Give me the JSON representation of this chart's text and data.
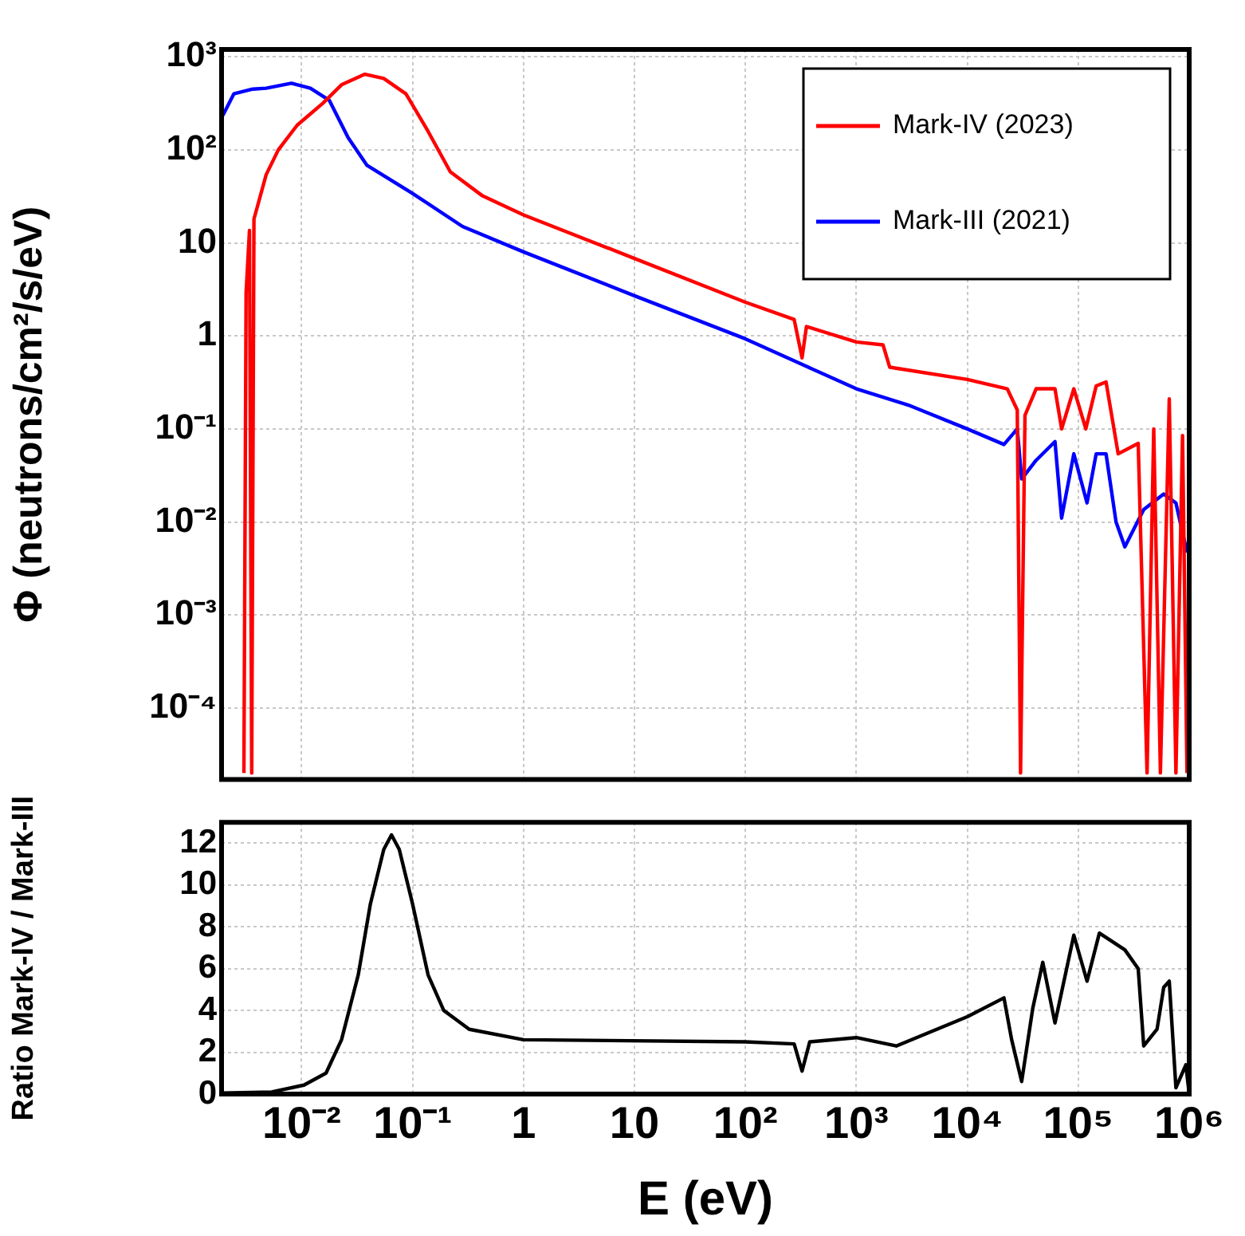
{
  "chart_data": [
    {
      "type": "line",
      "ylabel": "Φ (neutrons/cm²/s/eV)",
      "log": "xy",
      "grid": true,
      "legend": "top right",
      "tick_labels": "y",
      "marker": "none",
      "line_style": "solid",
      "xlim": [
        0.0019,
        1000000
      ],
      "ylim": [
        1.7e-05,
        1200
      ],
      "xticks": [
        {
          "value": 0.01,
          "label": null
        },
        {
          "value": 0.1,
          "label": null
        },
        {
          "value": 1,
          "label": null
        },
        {
          "value": 10,
          "label": null
        },
        {
          "value": 100,
          "label": null
        },
        {
          "value": 1000,
          "label": null
        },
        {
          "value": 10000,
          "label": null
        },
        {
          "value": 100000,
          "label": null
        },
        {
          "value": 1000000,
          "label": null
        }
      ],
      "yticks": [
        {
          "value": 0.0001,
          "label": "10⁻⁴"
        },
        {
          "value": 0.001,
          "label": "10⁻³"
        },
        {
          "value": 0.01,
          "label": "10⁻²"
        },
        {
          "value": 0.1,
          "label": "10⁻¹"
        },
        1,
        10,
        {
          "value": 100,
          "label": "10²"
        },
        {
          "value": 1000,
          "label": "10³"
        }
      ],
      "series": [
        {
          "name": "Mark-IV (2023)",
          "color": "#ff0000",
          "x": [
            0.00302,
            0.00316,
            0.00339,
            0.00355,
            0.00372,
            0.00479,
            0.00617,
            0.00912,
            0.0155,
            0.0229,
            0.0372,
            0.055,
            0.0871,
            0.138,
            0.219,
            0.427,
            1,
            10,
            100,
            275,
            324,
            355,
            1000,
            1740,
            2000,
            10000,
            22900,
            28200,
            30200,
            33100,
            41700,
            61700,
            70800,
            91200,
            117000,
            145000,
            178000,
            229000,
            347000,
            417000,
            479000,
            550000,
            661000,
            759000,
            871000,
            955000
          ],
          "values": [
            2e-05,
            2.9,
            13.6,
            2e-05,
            18,
            54,
            100,
            184,
            316,
            500,
            650,
            585,
            400,
            158,
            58,
            32,
            20,
            6.8,
            2.3,
            1.5,
            0.58,
            1.26,
            0.86,
            0.8,
            0.46,
            0.34,
            0.27,
            0.16,
            2e-05,
            0.14,
            0.27,
            0.27,
            0.1,
            0.27,
            0.1,
            0.29,
            0.32,
            0.054,
            0.07,
            2e-05,
            0.1,
            2e-05,
            0.21,
            2e-05,
            0.085,
            2e-05
          ]
        },
        {
          "name": "Mark-III (2021)",
          "color": "#0000ff",
          "x": [
            0.00195,
            0.00245,
            0.00363,
            0.00479,
            0.0081,
            0.012,
            0.0178,
            0.0263,
            0.0389,
            0.1,
            0.282,
            1,
            10,
            100,
            316,
            1000,
            2950,
            10000,
            21400,
            28200,
            30900,
            41700,
            61700,
            70800,
            91200,
            120000,
            145000,
            178000,
            219000,
            263000,
            389000,
            589000,
            759000,
            955000
          ],
          "values": [
            234,
            400,
            450,
            460,
            520,
            460,
            340,
            135,
            68,
            34,
            15,
            8,
            2.7,
            0.93,
            0.5,
            0.27,
            0.18,
            0.1,
            0.068,
            0.1,
            0.029,
            0.046,
            0.073,
            0.011,
            0.054,
            0.016,
            0.054,
            0.054,
            0.01,
            0.0054,
            0.0136,
            0.02,
            0.016,
            0.0047
          ]
        }
      ]
    },
    {
      "type": "line",
      "xlabel": "E (eV)",
      "ylabel": "Ratio Mark-IV / Mark-III",
      "log": "x",
      "grid": true,
      "marker": "none",
      "line_style": "solid",
      "xlim": [
        0.0019,
        1000000
      ],
      "ylim": [
        0,
        13
      ],
      "xticks": [
        {
          "value": 0.01,
          "label": "10⁻²"
        },
        {
          "value": 0.1,
          "label": "10⁻¹"
        },
        1,
        10,
        {
          "value": 100,
          "label": "10²"
        },
        {
          "value": 1000,
          "label": "10³"
        },
        {
          "value": 10000,
          "label": "10⁴"
        },
        {
          "value": 100000,
          "label": "10⁵"
        },
        {
          "value": 1000000,
          "label": "10⁶"
        }
      ],
      "yticks": [
        0,
        2,
        4,
        6,
        8,
        10,
        12
      ],
      "series": [
        {
          "color": "#000000",
          "x": [
            0.00195,
            0.00537,
            0.0105,
            0.0166,
            0.0229,
            0.0324,
            0.0417,
            0.055,
            0.0646,
            0.0759,
            0.1,
            0.138,
            0.191,
            0.324,
            1,
            100,
            275,
            324,
            380,
            1000,
            2290,
            10000,
            21400,
            25100,
            30900,
            38900,
            47900,
            61700,
            91200,
            120000,
            155000,
            263000,
            347000,
            389000,
            513000,
            589000,
            661000,
            759000,
            933000,
            1000000
          ],
          "values": [
            0.05,
            0.1,
            0.43,
            1.0,
            2.6,
            5.7,
            9.1,
            11.7,
            12.4,
            11.7,
            9.1,
            5.7,
            4.0,
            3.1,
            2.6,
            2.5,
            2.4,
            1.1,
            2.5,
            2.7,
            2.3,
            3.7,
            4.6,
            2.6,
            0.6,
            4.1,
            6.3,
            3.4,
            7.6,
            5.4,
            7.7,
            6.9,
            6.0,
            2.3,
            3.1,
            5.1,
            5.4,
            0.3,
            1.4,
            0
          ]
        }
      ]
    }
  ]
}
